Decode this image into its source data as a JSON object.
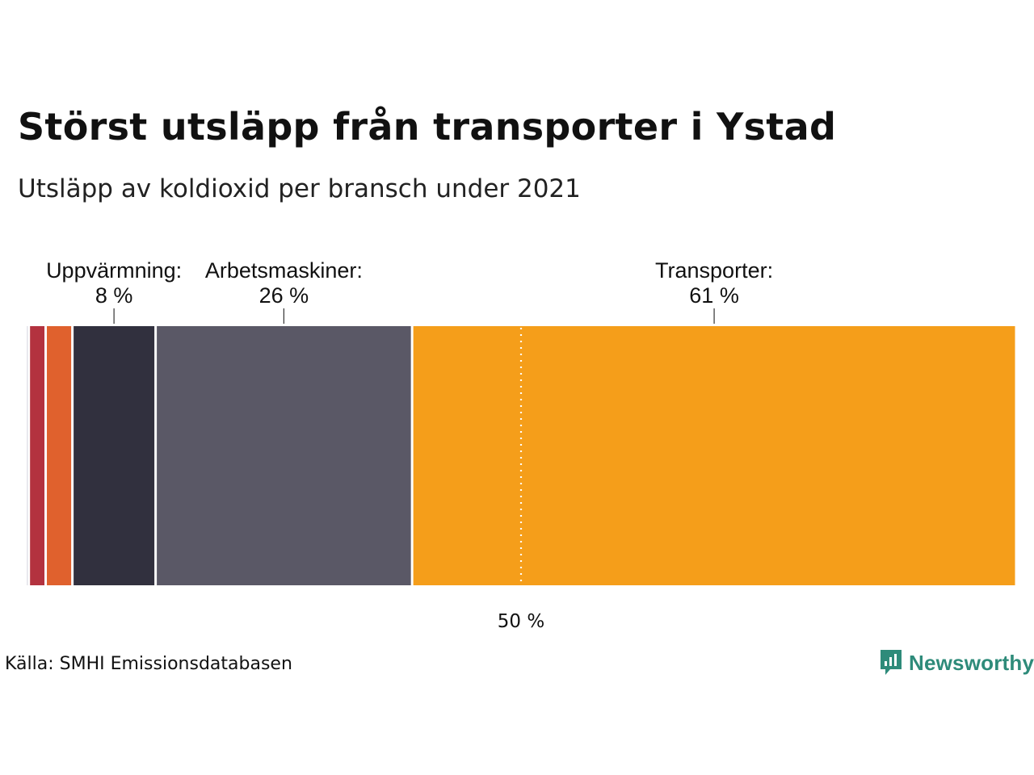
{
  "title": "Störst utsläpp från transporter i Ystad",
  "subtitle": "Utsläpp av koldioxid per bransch under 2021",
  "source": "Källa: SMHI Emissionsdatabasen",
  "brand": {
    "name": "Newsworthy",
    "color": "#2e8b7a",
    "icon": "chart-bubble-icon"
  },
  "chart_data": {
    "type": "bar",
    "orientation": "horizontal-stacked-100",
    "title": "Störst utsläpp från transporter i Ystad",
    "subtitle": "Utsläpp av koldioxid per bransch under 2021",
    "unit": "%",
    "segments": [
      {
        "name": "",
        "value": 0.3,
        "color": "#c9c8d6",
        "label_name": "",
        "label_value": ""
      },
      {
        "name": "",
        "value": 1.7,
        "color": "#b3323f",
        "label_name": "",
        "label_value": ""
      },
      {
        "name": "",
        "value": 2.7,
        "color": "#e0612d",
        "label_name": "",
        "label_value": ""
      },
      {
        "name": "Uppvärmning",
        "value": 8.4,
        "color": "#31303e",
        "label_name": "Uppvärmning:",
        "label_value": "8 %"
      },
      {
        "name": "Arbetsmaskiner",
        "value": 25.9,
        "color": "#5a5866",
        "label_name": "Arbetsmaskiner:",
        "label_value": "26 %"
      },
      {
        "name": "Transporter",
        "value": 61.0,
        "color": "#f59e1a",
        "label_name": "Transporter:",
        "label_value": "61 %"
      }
    ],
    "reference_line": {
      "value": 50,
      "label": "50 %"
    },
    "xlim": [
      0,
      100
    ]
  }
}
